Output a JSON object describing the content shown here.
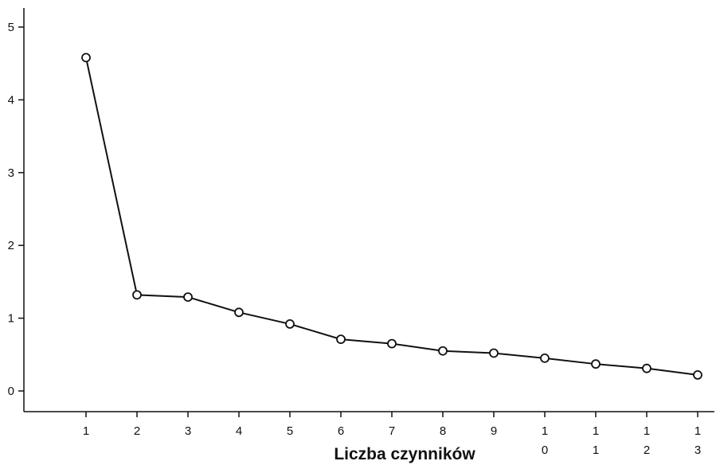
{
  "chart_data": {
    "type": "line",
    "title": "",
    "xlabel": "Liczba czynników",
    "ylabel": "",
    "x": [
      1,
      2,
      3,
      4,
      5,
      6,
      7,
      8,
      9,
      10,
      11,
      12,
      13
    ],
    "x_tick_labels": [
      [
        "1"
      ],
      [
        "2"
      ],
      [
        "3"
      ],
      [
        "4"
      ],
      [
        "5"
      ],
      [
        "6"
      ],
      [
        "7"
      ],
      [
        "8"
      ],
      [
        "9"
      ],
      [
        "1",
        "0"
      ],
      [
        "1",
        "1"
      ],
      [
        "1",
        "2"
      ],
      [
        "1",
        "3"
      ]
    ],
    "y_ticks": [
      0,
      1,
      2,
      3,
      4,
      5
    ],
    "ylim": [
      -0.3,
      5.25
    ],
    "grid": false,
    "legend": "none",
    "series": [
      {
        "values": [
          4.58,
          1.32,
          1.29,
          1.08,
          0.92,
          0.71,
          0.65,
          0.55,
          0.52,
          0.45,
          0.37,
          0.31,
          0.22
        ]
      }
    ],
    "colors": {
      "line": "#111111",
      "marker_stroke": "#111111",
      "marker_fill": "#ffffff",
      "axis": "#111111"
    }
  }
}
